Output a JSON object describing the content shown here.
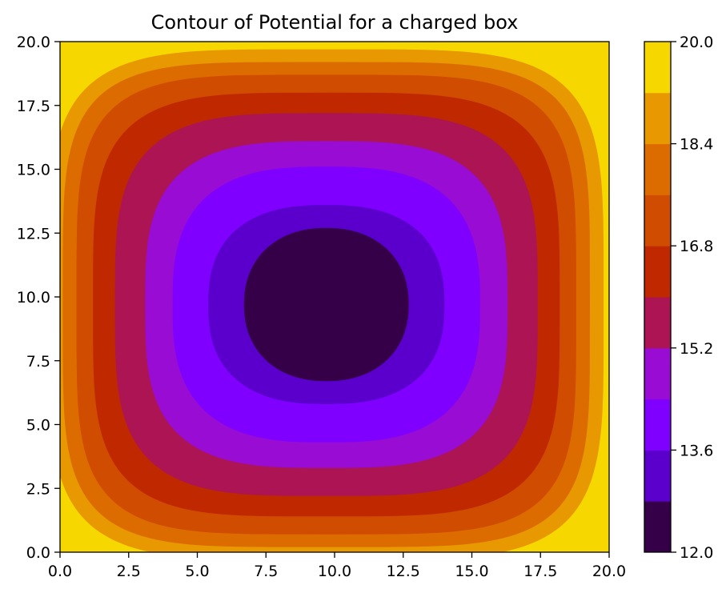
{
  "chart_data": {
    "type": "contourf",
    "title": "Contour of Potential for a charged box",
    "xlabel": "",
    "ylabel": "",
    "xlim": [
      0,
      20
    ],
    "ylim": [
      0,
      20
    ],
    "x_ticks": [
      "0.0",
      "2.5",
      "5.0",
      "7.5",
      "10.0",
      "12.5",
      "15.0",
      "17.5",
      "20.0"
    ],
    "y_ticks": [
      "0.0",
      "2.5",
      "5.0",
      "7.5",
      "10.0",
      "12.5",
      "15.0",
      "17.5",
      "20.0"
    ],
    "grid": false,
    "colormap": "gnuplot",
    "center": [
      9.7,
      9.7
    ],
    "levels": [
      12.0,
      12.8,
      13.6,
      14.4,
      15.2,
      16.0,
      16.8,
      17.6,
      18.4,
      19.2,
      20.0
    ],
    "level_colors": [
      "#350048",
      "#5b00cc",
      "#8000ff",
      "#980cd4",
      "#ac1454",
      "#c02800",
      "#d04c00",
      "#dc6c00",
      "#e89800",
      "#f6d800"
    ],
    "band_outer_edges": [
      {
        "half_x": 3.0,
        "half_y": 3.0,
        "shape_exponent": 2.2
      },
      {
        "half_x": 4.3,
        "half_y": 3.9,
        "shape_exponent": 2.5
      },
      {
        "half_x": 5.6,
        "half_y": 5.4,
        "shape_exponent": 2.8
      },
      {
        "half_x": 6.6,
        "half_y": 6.4,
        "shape_exponent": 3.2
      },
      {
        "half_x": 7.7,
        "half_y": 7.5,
        "shape_exponent": 3.6
      },
      {
        "half_x": 8.5,
        "half_y": 8.3,
        "shape_exponent": 4.0
      },
      {
        "half_x": 9.1,
        "half_y": 9.0,
        "shape_exponent": 4.4
      },
      {
        "half_x": 9.6,
        "half_y": 9.5,
        "shape_exponent": 4.6
      },
      {
        "half_x": 10.1,
        "half_y": 10.0,
        "shape_exponent": 4.5
      }
    ],
    "colorbar": {
      "range": [
        12.0,
        20.0
      ],
      "tick_values": [
        12.0,
        13.6,
        15.2,
        16.8,
        18.4,
        20.0
      ],
      "tick_labels": [
        "12.0",
        "13.6",
        "15.2",
        "16.8",
        "18.4",
        "20.0"
      ]
    }
  }
}
